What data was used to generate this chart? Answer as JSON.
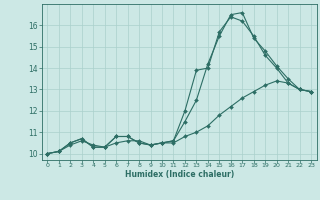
{
  "xlabel": "Humidex (Indice chaleur)",
  "bg_color": "#cce8e5",
  "line_color": "#2d6e65",
  "grid_color": "#aad0cc",
  "xlim": [
    -0.5,
    23.5
  ],
  "ylim": [
    9.7,
    17.0
  ],
  "xticks": [
    0,
    1,
    2,
    3,
    4,
    5,
    6,
    7,
    8,
    9,
    10,
    11,
    12,
    13,
    14,
    15,
    16,
    17,
    18,
    19,
    20,
    21,
    22,
    23
  ],
  "yticks": [
    10,
    11,
    12,
    13,
    14,
    15,
    16
  ],
  "line1_x": [
    0,
    1,
    2,
    3,
    4,
    5,
    6,
    7,
    8,
    9,
    10,
    11,
    12,
    13,
    14,
    15,
    16,
    17,
    18,
    19,
    20,
    21,
    22,
    23
  ],
  "line1_y": [
    10.0,
    10.1,
    10.5,
    10.7,
    10.3,
    10.3,
    10.8,
    10.8,
    10.5,
    10.4,
    10.5,
    10.6,
    11.5,
    12.5,
    14.2,
    15.5,
    16.5,
    16.6,
    15.4,
    14.8,
    14.1,
    13.5,
    13.0,
    12.9
  ],
  "line2_x": [
    0,
    1,
    2,
    3,
    4,
    5,
    6,
    7,
    8,
    9,
    10,
    11,
    12,
    13,
    14,
    15,
    16,
    17,
    18,
    19,
    20,
    21,
    22,
    23
  ],
  "line2_y": [
    10.0,
    10.1,
    10.5,
    10.7,
    10.3,
    10.3,
    10.8,
    10.8,
    10.5,
    10.4,
    10.5,
    10.6,
    12.0,
    13.9,
    14.0,
    15.7,
    16.4,
    16.2,
    15.5,
    14.6,
    14.0,
    13.3,
    13.0,
    12.9
  ],
  "line3_x": [
    0,
    1,
    2,
    3,
    4,
    5,
    6,
    7,
    8,
    9,
    10,
    11,
    12,
    13,
    14,
    15,
    16,
    17,
    18,
    19,
    20,
    21,
    22,
    23
  ],
  "line3_y": [
    10.0,
    10.1,
    10.4,
    10.6,
    10.4,
    10.3,
    10.5,
    10.6,
    10.6,
    10.4,
    10.5,
    10.5,
    10.8,
    11.0,
    11.3,
    11.8,
    12.2,
    12.6,
    12.9,
    13.2,
    13.4,
    13.3,
    13.0,
    12.9
  ]
}
